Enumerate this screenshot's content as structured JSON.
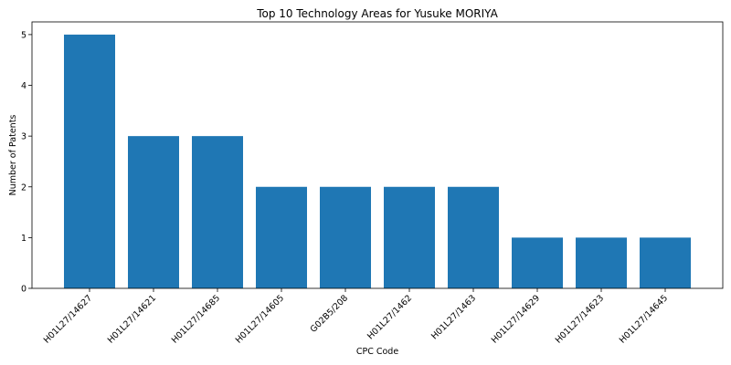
{
  "chart_data": {
    "type": "bar",
    "title": "Top 10 Technology Areas for Yusuke MORIYA",
    "xlabel": "CPC Code",
    "ylabel": "Number of Patents",
    "categories": [
      "H01L27/14627",
      "H01L27/14621",
      "H01L27/14685",
      "H01L27/14605",
      "G02B5/208",
      "H01L27/1462",
      "H01L27/1463",
      "H01L27/14629",
      "H01L27/14623",
      "H01L27/14645"
    ],
    "values": [
      5,
      3,
      3,
      2,
      2,
      2,
      2,
      1,
      1,
      1
    ],
    "ylim": [
      0,
      5.25
    ],
    "yticks": [
      0,
      1,
      2,
      3,
      4,
      5
    ],
    "grid": false,
    "legend": "none",
    "colors": {
      "bar": "#1f77b4"
    }
  }
}
